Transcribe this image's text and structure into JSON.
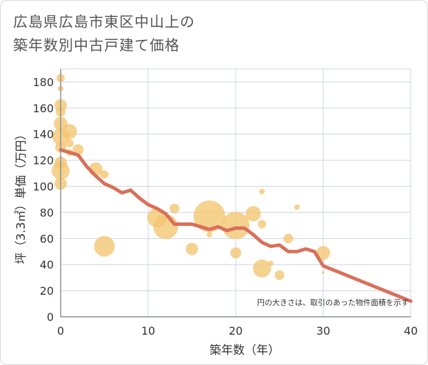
{
  "title_line1": "広島県広島市東区中山上の",
  "title_line2": "築年数別中古戸建て価格",
  "chart_data": {
    "type": "scatter",
    "title": "広島県広島市東区中山上の築年数別中古戸建て価格",
    "xlabel": "築年数（年）",
    "ylabel": "坪（3.3㎡）単価（万円）",
    "xlim": [
      0,
      40
    ],
    "ylim": [
      0,
      190
    ],
    "xticks": [
      0,
      10,
      20,
      30,
      40
    ],
    "yticks": [
      0,
      20,
      40,
      60,
      80,
      100,
      120,
      140,
      160,
      180
    ],
    "grid": true,
    "annotation": "円の大きさは、取引のあった物件面積を示す",
    "colors": {
      "bubble": "#f3c56f",
      "line": "#d9705a",
      "grid": "#cdd5df",
      "axis": "#8a9099"
    },
    "bubbles": [
      {
        "x": 0,
        "y": 183,
        "s": 6
      },
      {
        "x": 0,
        "y": 175,
        "s": 4
      },
      {
        "x": 0,
        "y": 162,
        "s": 9
      },
      {
        "x": 0,
        "y": 157,
        "s": 7
      },
      {
        "x": 0,
        "y": 148,
        "s": 10
      },
      {
        "x": 0,
        "y": 138,
        "s": 12
      },
      {
        "x": 0,
        "y": 130,
        "s": 8
      },
      {
        "x": 0,
        "y": 118,
        "s": 9
      },
      {
        "x": 0,
        "y": 112,
        "s": 13
      },
      {
        "x": 0,
        "y": 102,
        "s": 9
      },
      {
        "x": 1,
        "y": 142,
        "s": 11
      },
      {
        "x": 1,
        "y": 133,
        "s": 6
      },
      {
        "x": 1,
        "y": 126,
        "s": 5
      },
      {
        "x": 2,
        "y": 128,
        "s": 8
      },
      {
        "x": 4,
        "y": 113,
        "s": 10
      },
      {
        "x": 5,
        "y": 109,
        "s": 6
      },
      {
        "x": 5,
        "y": 54,
        "s": 15
      },
      {
        "x": 11,
        "y": 76,
        "s": 14
      },
      {
        "x": 12,
        "y": 69,
        "s": 18
      },
      {
        "x": 13,
        "y": 83,
        "s": 7
      },
      {
        "x": 15,
        "y": 52,
        "s": 9
      },
      {
        "x": 17,
        "y": 77,
        "s": 23
      },
      {
        "x": 17,
        "y": 63,
        "s": 4
      },
      {
        "x": 20,
        "y": 70,
        "s": 20
      },
      {
        "x": 20,
        "y": 49,
        "s": 8
      },
      {
        "x": 22,
        "y": 79,
        "s": 11
      },
      {
        "x": 23,
        "y": 96,
        "s": 4
      },
      {
        "x": 23,
        "y": 71,
        "s": 6
      },
      {
        "x": 23,
        "y": 37,
        "s": 13
      },
      {
        "x": 24,
        "y": 41,
        "s": 4
      },
      {
        "x": 25,
        "y": 32,
        "s": 7
      },
      {
        "x": 26,
        "y": 60,
        "s": 7
      },
      {
        "x": 27,
        "y": 84,
        "s": 4
      },
      {
        "x": 30,
        "y": 49,
        "s": 10
      },
      {
        "x": 30,
        "y": 34,
        "s": 2
      }
    ],
    "trend": {
      "x": [
        0,
        1,
        2,
        3,
        4,
        5,
        6,
        7,
        8,
        9,
        10,
        11,
        12,
        13,
        14,
        15,
        16,
        17,
        18,
        19,
        20,
        21,
        22,
        23,
        24,
        25,
        26,
        27,
        28,
        29,
        30,
        40
      ],
      "y": [
        128,
        126,
        124,
        115,
        108,
        102,
        99,
        95,
        97,
        91,
        86,
        83,
        79,
        71,
        71,
        71,
        69,
        67,
        69,
        66,
        68,
        68,
        63,
        57,
        54,
        55,
        50,
        50,
        52,
        50,
        39,
        12
      ]
    }
  }
}
